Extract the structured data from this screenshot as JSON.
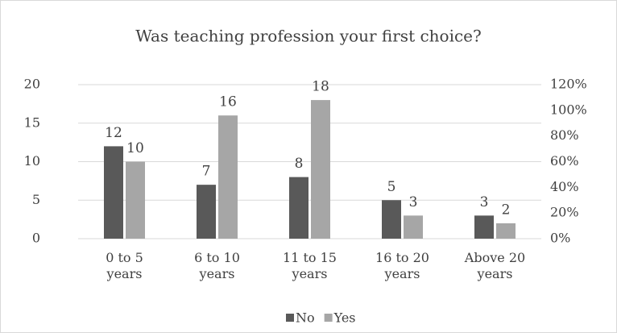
{
  "chart_data": {
    "type": "bar",
    "title": "Was teaching profession your first choice?",
    "categories": [
      "0 to 5 years",
      "6 to 10 years",
      "11 to 15 years",
      "16 to 20 years",
      "Above 20 years"
    ],
    "series": [
      {
        "name": "No",
        "color": "#595959",
        "values": [
          12,
          7,
          8,
          5,
          3
        ]
      },
      {
        "name": "Yes",
        "color": "#a6a6a6",
        "values": [
          10,
          16,
          18,
          3,
          2
        ]
      }
    ],
    "ylim": [
      0,
      20
    ],
    "yticks": [
      0,
      5,
      10,
      15,
      20
    ],
    "y2lim": [
      0,
      120
    ],
    "y2ticks": [
      {
        "value": 0,
        "label": "0%"
      },
      {
        "value": 20,
        "label": "20%"
      },
      {
        "value": 40,
        "label": "40%"
      },
      {
        "value": 60,
        "label": "60%"
      },
      {
        "value": 80,
        "label": "80%"
      },
      {
        "value": 100,
        "label": "100%"
      },
      {
        "value": 120,
        "label": "120%"
      }
    ],
    "grid": true,
    "legend": "bottom"
  }
}
